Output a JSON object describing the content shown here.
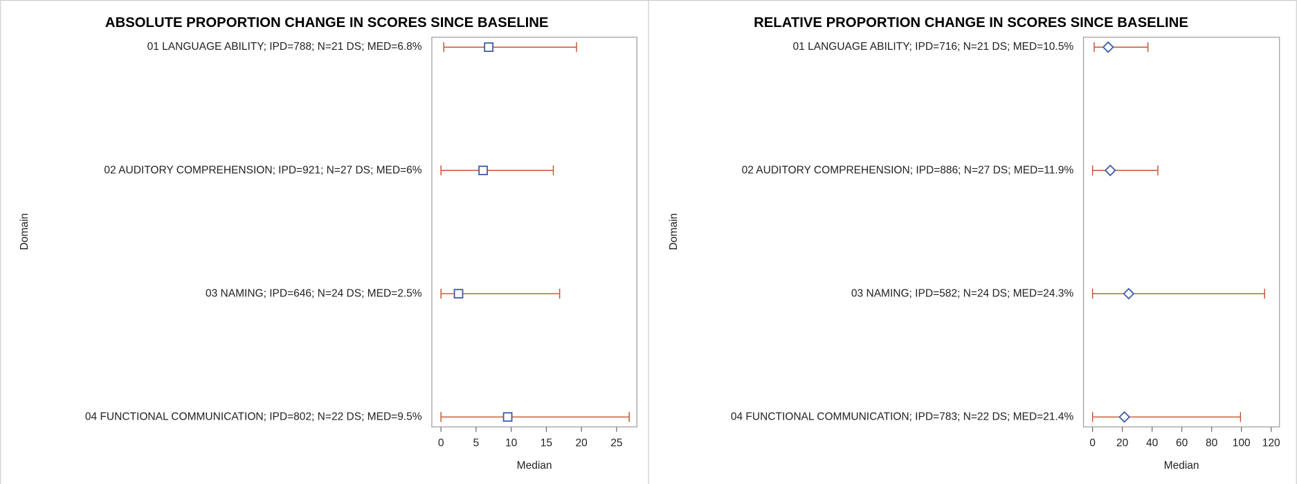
{
  "chart_data": [
    {
      "type": "errorbar",
      "title": "ABSOLUTE PROPORTION CHANGE IN SCORES SINCE BASELINE",
      "categories": [
        "01 LANGUAGE ABILITY; IPD=788; N=21 DS; MED=6.8%",
        "02 AUDITORY COMPREHENSION; IPD=921; N=27 DS; MED=6%",
        "03 NAMING; IPD=646; N=24 DS; MED=2.5%",
        "04 FUNCTIONAL COMMUNICATION; IPD=802; N=22 DS; MED=9.5%"
      ],
      "values": [
        6.8,
        6,
        2.5,
        9.5
      ],
      "lower": [
        0.4,
        0,
        0,
        0
      ],
      "upper": [
        19.3,
        16.0,
        16.9,
        26.8
      ],
      "xlim": [
        -1.3,
        27.9
      ],
      "xticks": [
        0,
        5,
        10,
        15,
        20,
        25
      ],
      "xlabel": "Median",
      "ylabel": "Domain",
      "marker": "square",
      "marker_color": "#3b5ba5",
      "bar_color": "#c0532d"
    },
    {
      "type": "errorbar",
      "title": "RELATIVE PROPORTION CHANGE IN SCORES SINCE BASELINE",
      "categories": [
        "01 LANGUAGE ABILITY; IPD=716; N=21 DS; MED=10.5%",
        "02 AUDITORY COMPREHENSION; IPD=886; N=27 DS; MED=11.9%",
        "03 NAMING; IPD=582; N=24 DS; MED=24.3%",
        "04 FUNCTIONAL COMMUNICATION; IPD=783; N=22 DS; MED=21.4%"
      ],
      "values": [
        10.5,
        11.9,
        24.3,
        21.4
      ],
      "lower": [
        1.1,
        0,
        0,
        0
      ],
      "upper": [
        37.2,
        43.9,
        115.6,
        99.4
      ],
      "xlim": [
        -6.1,
        125.6
      ],
      "xticks": [
        0,
        20,
        40,
        60,
        80,
        100,
        120
      ],
      "xlabel": "Median",
      "ylabel": "Domain",
      "marker": "diamond",
      "marker_color": "#3b5ba5",
      "bar_color": "#c0532d"
    }
  ]
}
